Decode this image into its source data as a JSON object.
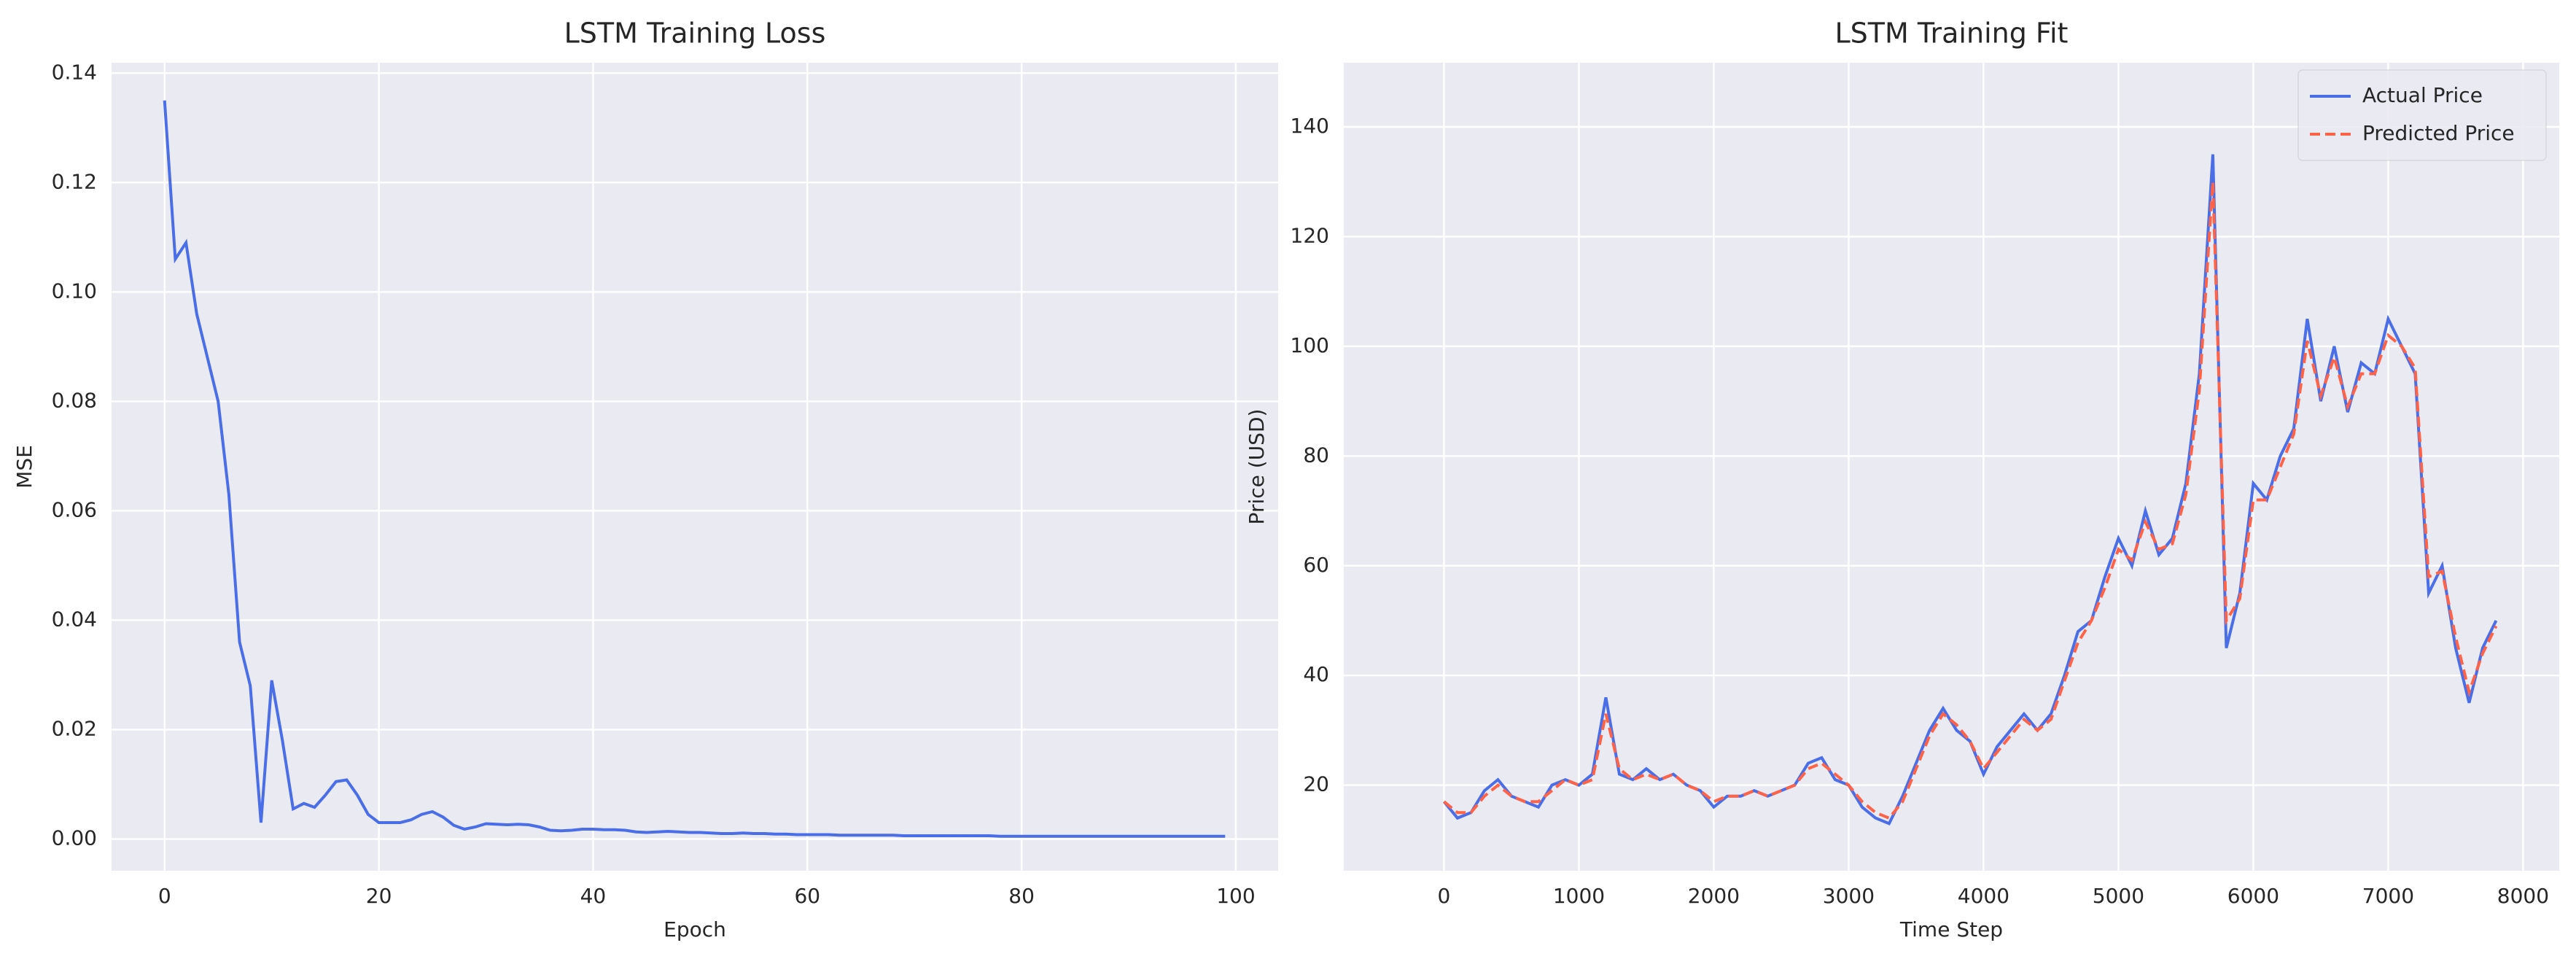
{
  "chart_data": [
    {
      "type": "line",
      "title": "LSTM Training Loss",
      "xlabel": "Epoch",
      "ylabel": "MSE",
      "xlim": [
        -4.95,
        103.95
      ],
      "ylim": [
        -0.0058,
        0.1419
      ],
      "grid": true,
      "xticks": [
        0,
        20,
        40,
        60,
        80,
        100
      ],
      "yticks": [
        {
          "value": 0,
          "label": "0.00"
        },
        {
          "value": 0.02,
          "label": "0.02"
        },
        {
          "value": 0.04,
          "label": "0.04"
        },
        {
          "value": 0.06,
          "label": "0.06"
        },
        {
          "value": 0.08,
          "label": "0.08"
        },
        {
          "value": 0.1,
          "label": "0.10"
        },
        {
          "value": 0.12,
          "label": "0.12"
        },
        {
          "value": 0.14,
          "label": "0.14"
        }
      ],
      "x": [
        0,
        1,
        2,
        3,
        4,
        5,
        6,
        7,
        8,
        9,
        10,
        11,
        12,
        13,
        14,
        15,
        16,
        17,
        18,
        19,
        20,
        21,
        22,
        23,
        24,
        25,
        26,
        27,
        28,
        29,
        30,
        31,
        32,
        33,
        34,
        35,
        36,
        37,
        38,
        39,
        40,
        41,
        42,
        43,
        44,
        45,
        46,
        47,
        48,
        49,
        50,
        51,
        52,
        53,
        54,
        55,
        56,
        57,
        58,
        59,
        60,
        61,
        62,
        63,
        64,
        65,
        66,
        67,
        68,
        69,
        70,
        71,
        72,
        73,
        74,
        75,
        76,
        77,
        78,
        79,
        80,
        81,
        82,
        83,
        84,
        85,
        86,
        87,
        88,
        89,
        90,
        91,
        92,
        93,
        94,
        95,
        96,
        97,
        98,
        99
      ],
      "series": [
        {
          "color": "#4a6ee8",
          "dash": false,
          "values": [
            0.135,
            0.106,
            0.109,
            0.096,
            0.088,
            0.08,
            0.063,
            0.036,
            0.028,
            0.003,
            0.029,
            0.018,
            0.0055,
            0.0065,
            0.0058,
            0.008,
            0.0105,
            0.0108,
            0.008,
            0.0045,
            0.003,
            0.003,
            0.003,
            0.0035,
            0.0045,
            0.005,
            0.004,
            0.0025,
            0.0018,
            0.0022,
            0.0028,
            0.0027,
            0.0026,
            0.0027,
            0.0026,
            0.0022,
            0.0016,
            0.0015,
            0.0016,
            0.0018,
            0.0018,
            0.0017,
            0.0017,
            0.0016,
            0.0013,
            0.0012,
            0.0013,
            0.0014,
            0.0013,
            0.0012,
            0.0012,
            0.0011,
            0.001,
            0.001,
            0.0011,
            0.001,
            0.001,
            0.0009,
            0.0009,
            0.0008,
            0.0008,
            0.0008,
            0.0008,
            0.0007,
            0.0007,
            0.0007,
            0.0007,
            0.0007,
            0.0007,
            0.0006,
            0.0006,
            0.0006,
            0.0006,
            0.0006,
            0.0006,
            0.0006,
            0.0006,
            0.0006,
            0.0005,
            0.0005,
            0.0005,
            0.0005,
            0.0005,
            0.0005,
            0.0005,
            0.0005,
            0.0005,
            0.0005,
            0.0005,
            0.0005,
            0.0005,
            0.0005,
            0.0005,
            0.0005,
            0.0005,
            0.0005,
            0.0005,
            0.0005,
            0.0005,
            0.0005
          ]
        }
      ]
    },
    {
      "type": "line",
      "title": "LSTM Training Fit",
      "xlabel": "Time Step",
      "ylabel": "Price (USD)",
      "xlim": [
        -743,
        8268
      ],
      "ylim": [
        4.4,
        151.7
      ],
      "grid": true,
      "legend": "upper right",
      "xticks": [
        0,
        1000,
        2000,
        3000,
        4000,
        5000,
        6000,
        7000,
        8000
      ],
      "yticks": [
        20,
        40,
        60,
        80,
        100,
        120,
        140
      ],
      "x": [
        0,
        100,
        200,
        300,
        400,
        500,
        600,
        700,
        800,
        900,
        1000,
        1100,
        1200,
        1300,
        1400,
        1500,
        1600,
        1700,
        1800,
        1900,
        2000,
        2100,
        2200,
        2300,
        2400,
        2500,
        2600,
        2700,
        2800,
        2900,
        3000,
        3100,
        3200,
        3300,
        3400,
        3500,
        3600,
        3700,
        3800,
        3900,
        4000,
        4100,
        4200,
        4300,
        4400,
        4500,
        4600,
        4700,
        4800,
        4900,
        5000,
        5100,
        5200,
        5300,
        5400,
        5500,
        5600,
        5700,
        5800,
        5900,
        6000,
        6100,
        6200,
        6300,
        6400,
        6500,
        6600,
        6700,
        6800,
        6900,
        7000,
        7100,
        7200,
        7300,
        7400,
        7500,
        7600,
        7700,
        7800
      ],
      "series": [
        {
          "name": "Actual Price",
          "color": "#4a6ee8",
          "dash": false,
          "values": [
            17,
            14,
            15,
            19,
            21,
            18,
            17,
            16,
            20,
            21,
            20,
            22,
            36,
            22,
            21,
            23,
            21,
            22,
            20,
            19,
            16,
            18,
            18,
            19,
            18,
            19,
            20,
            24,
            25,
            21,
            20,
            16,
            14,
            13,
            18,
            24,
            30,
            34,
            30,
            28,
            22,
            27,
            30,
            33,
            30,
            33,
            40,
            48,
            50,
            58,
            65,
            60,
            70,
            62,
            65,
            75,
            95,
            135,
            45,
            55,
            75,
            72,
            80,
            85,
            105,
            90,
            100,
            88,
            97,
            95,
            105,
            100,
            95,
            55,
            60,
            45,
            35,
            45,
            50
          ]
        },
        {
          "name": "Predicted Price",
          "color": "#ff6347",
          "dash": true,
          "values": [
            17,
            15,
            15,
            18,
            20,
            18,
            17,
            17,
            19,
            21,
            20,
            21,
            33,
            23,
            21,
            22,
            21,
            22,
            20,
            19,
            17,
            18,
            18,
            19,
            18,
            19,
            20,
            23,
            24,
            22,
            20,
            17,
            15,
            14,
            17,
            23,
            29,
            33,
            31,
            28,
            23,
            26,
            29,
            32,
            30,
            32,
            39,
            46,
            50,
            56,
            63,
            61,
            68,
            63,
            64,
            73,
            92,
            130,
            50,
            54,
            72,
            72,
            78,
            84,
            101,
            91,
            98,
            89,
            95,
            95,
            102,
            100,
            96,
            58,
            59,
            47,
            37,
            44,
            49
          ]
        }
      ]
    }
  ]
}
